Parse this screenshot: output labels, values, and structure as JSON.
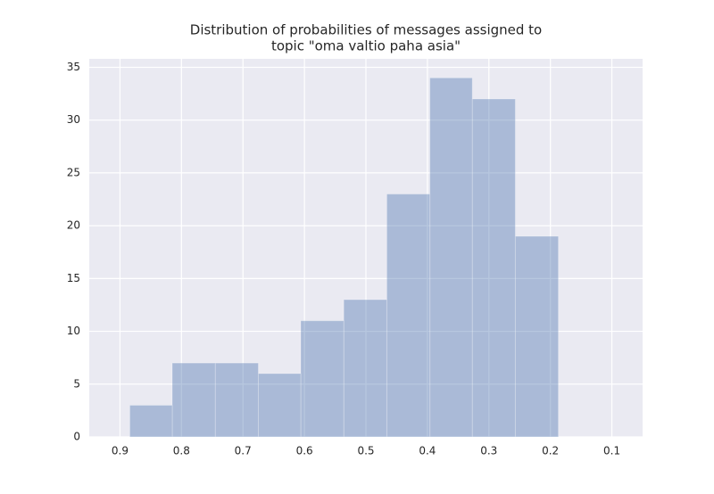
{
  "chart_data": {
    "type": "histogram",
    "title": [
      "Distribution of probabilities of messages assigned to",
      "topic \"oma valtio paha asia\""
    ],
    "bins": [
      0.187,
      0.257,
      0.327,
      0.396,
      0.466,
      0.536,
      0.606,
      0.675,
      0.745,
      0.815,
      0.884
    ],
    "values": [
      19,
      32,
      34,
      23,
      13,
      11,
      6,
      7,
      7,
      3
    ],
    "color": "#4c72b0",
    "xlim": [
      0.95,
      0.05
    ],
    "xticks": [
      0.9,
      0.8,
      0.7,
      0.6,
      0.5,
      0.4,
      0.3,
      0.2,
      0.1
    ],
    "ylim": [
      0,
      35.8
    ],
    "yticks": [
      0,
      5,
      10,
      15,
      20,
      25,
      30,
      35
    ],
    "grid": true
  }
}
